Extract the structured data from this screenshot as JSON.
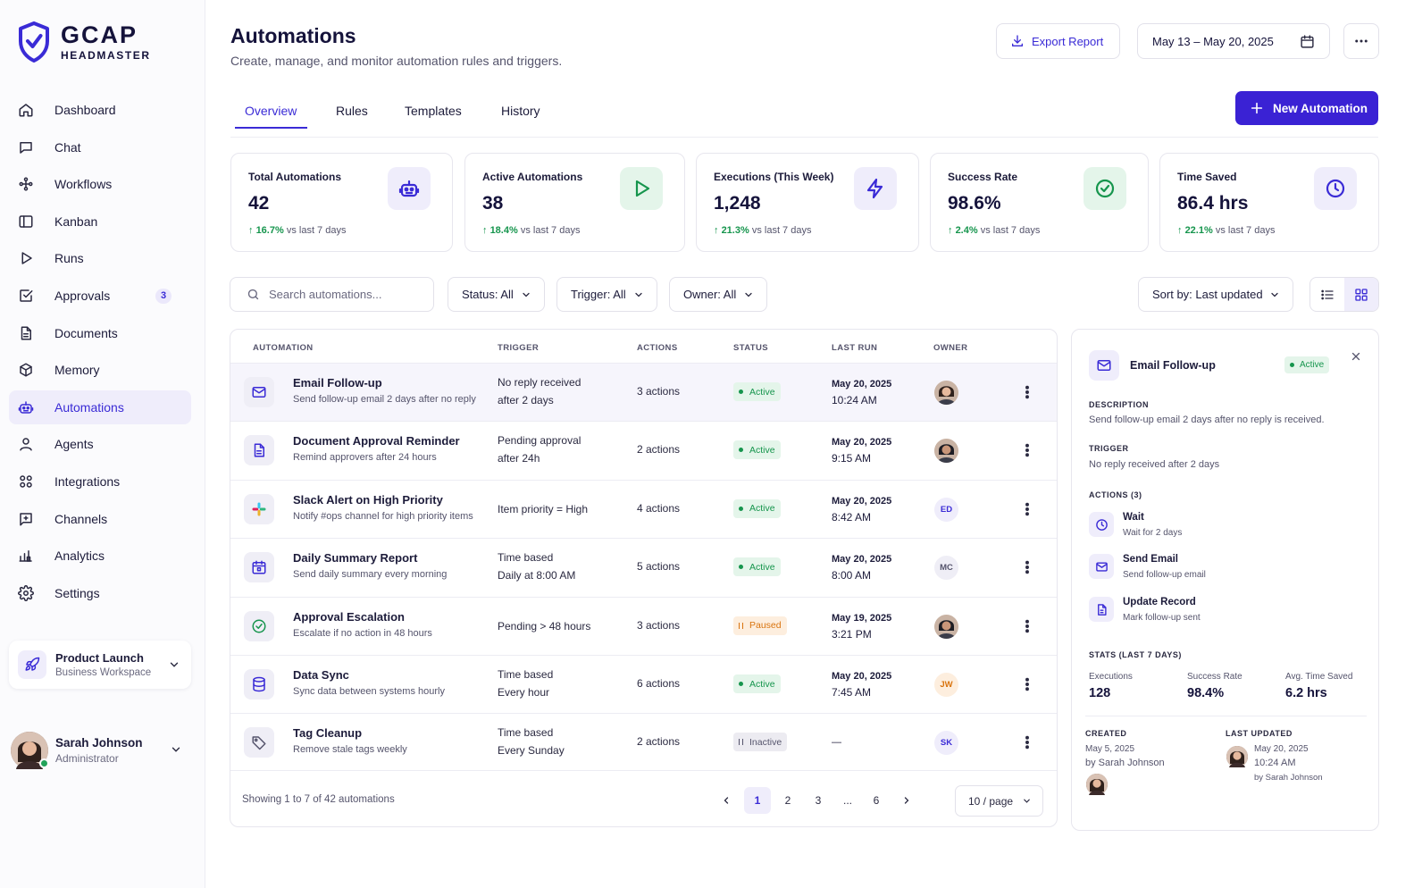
{
  "brand": {
    "name": "GCAP",
    "sub": "HEADMASTER"
  },
  "nav": [
    {
      "label": "Dashboard",
      "icon": "home-icon"
    },
    {
      "label": "Chat",
      "icon": "chat-icon"
    },
    {
      "label": "Workflows",
      "icon": "workflows-icon"
    },
    {
      "label": "Kanban",
      "icon": "kanban-icon"
    },
    {
      "label": "Runs",
      "icon": "play-icon"
    },
    {
      "label": "Approvals",
      "icon": "check-square-icon",
      "badge": "3"
    },
    {
      "label": "Documents",
      "icon": "document-icon"
    },
    {
      "label": "Memory",
      "icon": "cube-icon"
    },
    {
      "label": "Automations",
      "icon": "robot-icon",
      "active": true
    },
    {
      "label": "Agents",
      "icon": "user-icon"
    },
    {
      "label": "Integrations",
      "icon": "grid-circles-icon"
    },
    {
      "label": "Channels",
      "icon": "channel-icon"
    },
    {
      "label": "Analytics",
      "icon": "analytics-icon"
    },
    {
      "label": "Settings",
      "icon": "gear-icon"
    }
  ],
  "workspace": {
    "name": "Product Launch",
    "sub": "Business Workspace"
  },
  "user": {
    "name": "Sarah Johnson",
    "role": "Administrator"
  },
  "header": {
    "title": "Automations",
    "subtitle": "Create, manage, and monitor automation rules and triggers.",
    "export_label": "Export Report",
    "date_range": "May 13 – May 20, 2025"
  },
  "tabs": [
    "Overview",
    "Rules",
    "Templates",
    "History"
  ],
  "new_button": "New Automation",
  "stats": [
    {
      "title": "Total Automations",
      "value": "42",
      "delta": "16.7%",
      "delta_label": "vs last 7 days",
      "icon": "robot-icon",
      "color": "#3a2bd6",
      "bg": "#efedfb"
    },
    {
      "title": "Active Automations",
      "value": "38",
      "delta": "18.4%",
      "delta_label": "vs last 7 days",
      "icon": "play-icon",
      "color": "#16954d",
      "bg": "#e4f5ea"
    },
    {
      "title": "Executions (This Week)",
      "value": "1,248",
      "delta": "21.3%",
      "delta_label": "vs last 7 days",
      "icon": "bolt-icon",
      "color": "#3a2bd6",
      "bg": "#efedfb"
    },
    {
      "title": "Success Rate",
      "value": "98.6%",
      "delta": "2.4%",
      "delta_label": "vs last 7 days",
      "icon": "check-circle-icon",
      "color": "#16954d",
      "bg": "#e4f5ea"
    },
    {
      "title": "Time Saved",
      "value": "86.4 hrs",
      "delta": "22.1%",
      "delta_label": "vs last 7 days",
      "icon": "clock-icon",
      "color": "#3a2bd6",
      "bg": "#efedfb"
    }
  ],
  "filters": {
    "search_placeholder": "Search automations...",
    "status": "Status: All",
    "trigger": "Trigger: All",
    "owner": "Owner: All",
    "sort": "Sort by: Last updated"
  },
  "table": {
    "columns": [
      "Automation",
      "Trigger",
      "Actions",
      "Status",
      "Last Run",
      "Owner"
    ],
    "rows": [
      {
        "name": "Email Follow-up",
        "desc": "Send follow-up email 2 days after no reply",
        "trigger": [
          "No reply received",
          "after 2 days"
        ],
        "actions": "3 actions",
        "status": "Active",
        "date": "May 20, 2025",
        "time": "10:24 AM",
        "owner": "",
        "owner_photo": true,
        "icon": "mail-icon",
        "icon_color": "#3a2bd6",
        "selected": true
      },
      {
        "name": "Document Approval Reminder",
        "desc": "Remind approvers after 24 hours",
        "trigger": [
          "Pending approval",
          "after 24h"
        ],
        "actions": "2 actions",
        "status": "Active",
        "date": "May 20, 2025",
        "time": "9:15 AM",
        "owner": "",
        "owner_photo": true,
        "icon": "document-icon",
        "icon_color": "#3a2bd6"
      },
      {
        "name": "Slack Alert on High Priority",
        "desc": "Notify #ops channel for high priority items",
        "trigger": [
          "Item priority = High"
        ],
        "actions": "4 actions",
        "status": "Active",
        "date": "May 20, 2025",
        "time": "8:42 AM",
        "owner": "ED",
        "owner_bg": "#efedfb",
        "owner_color": "#3a2bd6",
        "icon": "slack-icon",
        "icon_color": "#e01e5a"
      },
      {
        "name": "Daily Summary Report",
        "desc": "Send daily summary every morning",
        "trigger": [
          "Time based",
          "Daily at 8:00 AM"
        ],
        "actions": "5 actions",
        "status": "Active",
        "date": "May 20, 2025",
        "time": "8:00 AM",
        "owner": "MC",
        "owner_bg": "#efeef6",
        "owner_color": "#55546c",
        "icon": "calendar-icon",
        "icon_color": "#3a2bd6"
      },
      {
        "name": "Approval Escalation",
        "desc": "Escalate if no action in 48 hours",
        "trigger": [
          "Pending > 48 hours"
        ],
        "actions": "3 actions",
        "status": "Paused",
        "date": "May 19, 2025",
        "time": "3:21 PM",
        "owner": "",
        "owner_photo": true,
        "icon": "check-circle-icon",
        "icon_color": "#16954d"
      },
      {
        "name": "Data Sync",
        "desc": "Sync data between systems hourly",
        "trigger": [
          "Time based",
          "Every hour"
        ],
        "actions": "6 actions",
        "status": "Active",
        "date": "May 20, 2025",
        "time": "7:45 AM",
        "owner": "JW",
        "owner_bg": "#fdeede",
        "owner_color": "#d9740f",
        "icon": "database-icon",
        "icon_color": "#3a2bd6"
      },
      {
        "name": "Tag Cleanup",
        "desc": "Remove stale tags weekly",
        "trigger": [
          "Time based",
          "Every Sunday"
        ],
        "actions": "2 actions",
        "status": "Inactive",
        "date": "—",
        "time": "",
        "owner": "SK",
        "owner_bg": "#efedfb",
        "owner_color": "#3a2bd6",
        "icon": "tag-icon",
        "icon_color": "#55546c"
      }
    ],
    "showing": "Showing 1 to 7 of 42 automations",
    "pages": [
      "1",
      "2",
      "3",
      "...",
      "6"
    ],
    "per_page": "10 / page"
  },
  "detail": {
    "title": "Email Follow-up",
    "status": "Active",
    "description_label": "Description",
    "description": "Send follow-up email 2 days after no reply is received.",
    "trigger_label": "Trigger",
    "trigger": "No reply received after 2 days",
    "actions_label": "Actions (3)",
    "actions": [
      {
        "name": "Wait",
        "sub": "Wait for 2 days",
        "icon": "clock-icon"
      },
      {
        "name": "Send Email",
        "sub": "Send follow-up email",
        "icon": "mail-icon"
      },
      {
        "name": "Update Record",
        "sub": "Mark follow-up sent",
        "icon": "document-icon"
      }
    ],
    "stats_label": "Stats (Last 7 Days)",
    "stats": [
      {
        "label": "Executions",
        "value": "128"
      },
      {
        "label": "Success Rate",
        "value": "98.4%"
      },
      {
        "label": "Avg. Time Saved",
        "value": "6.2 hrs"
      }
    ],
    "created_label": "Created",
    "created_date": "May 5, 2025",
    "created_by": "by Sarah Johnson",
    "updated_label": "Last Updated",
    "updated_date": "May 20, 2025",
    "updated_time": "10:24 AM",
    "updated_by": "by Sarah Johnson"
  }
}
